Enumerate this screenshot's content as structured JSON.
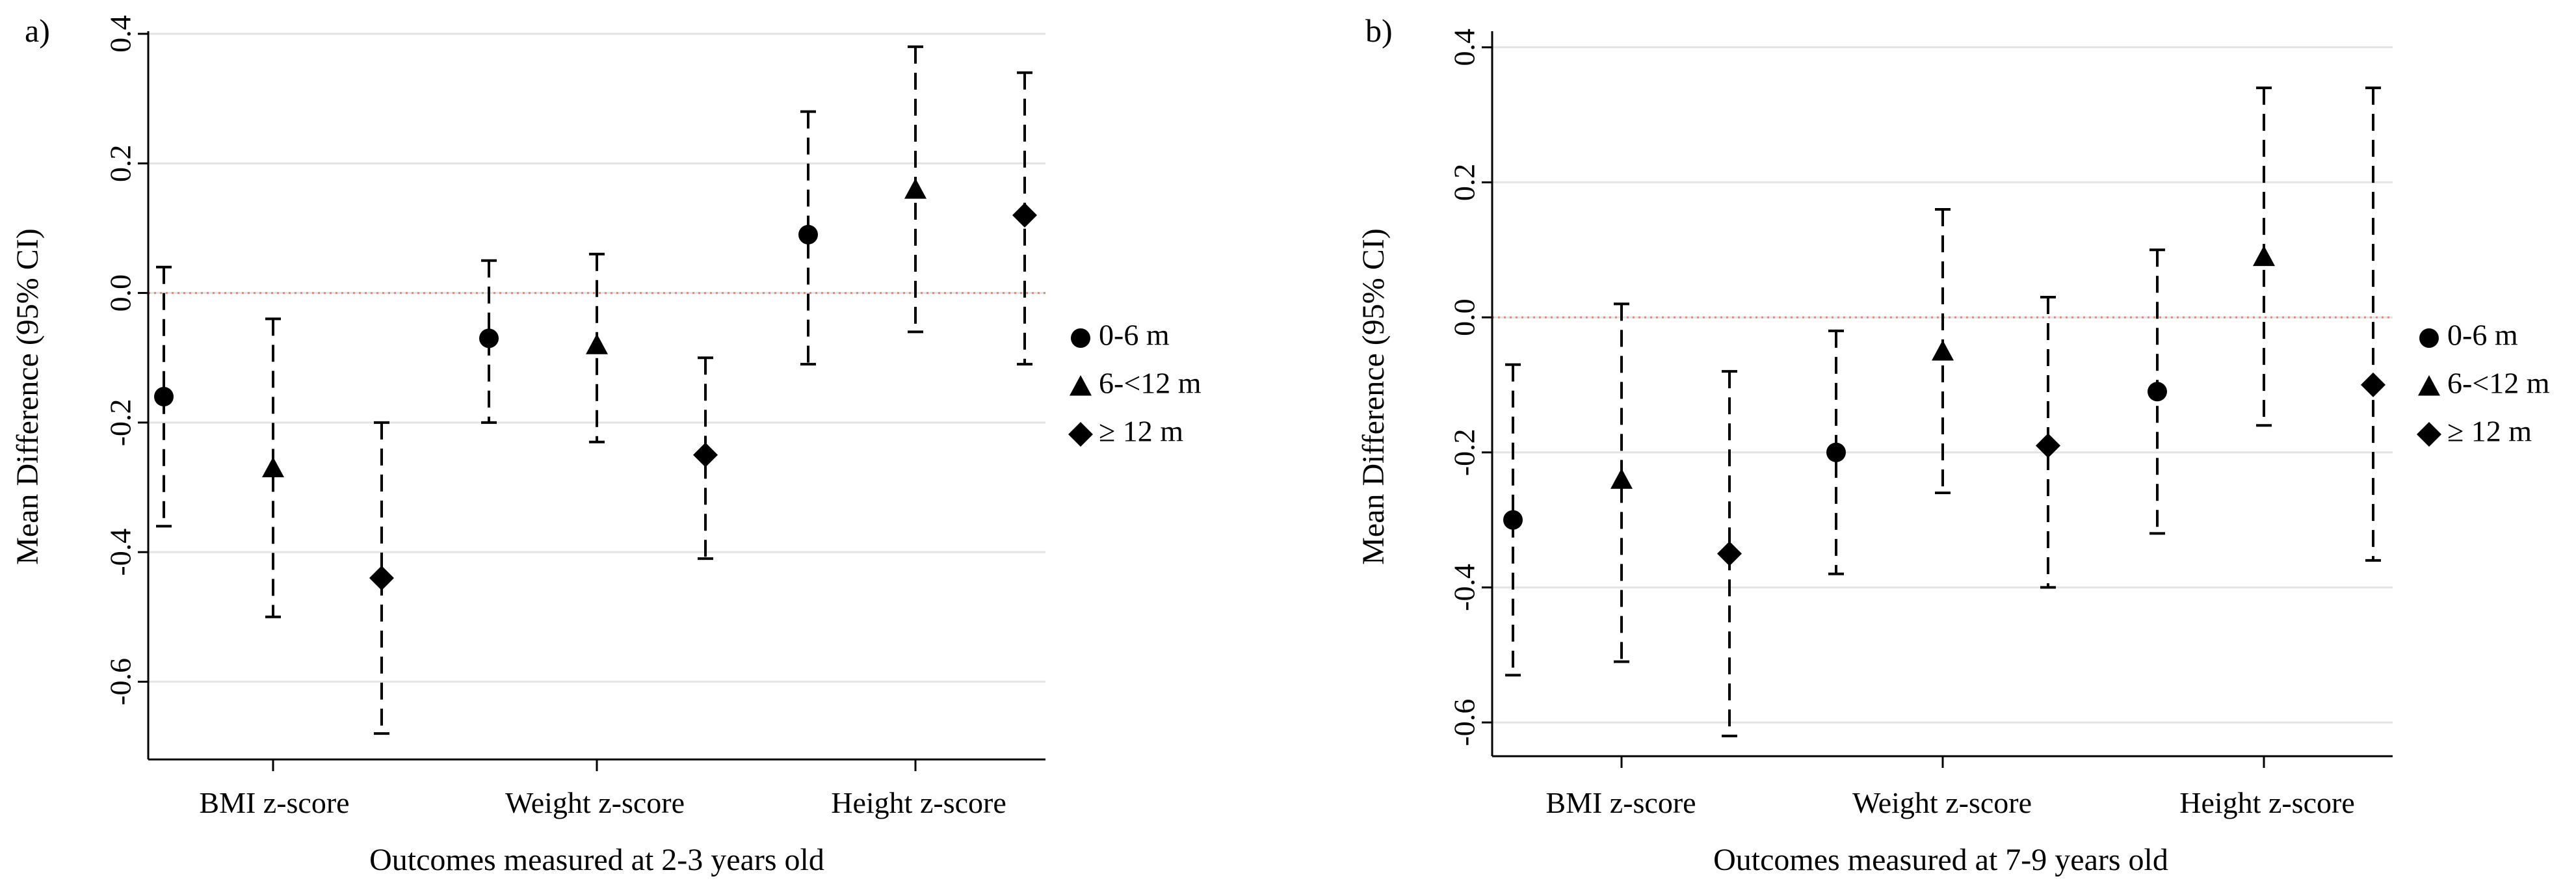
{
  "chart_data": [
    {
      "panel_label": "a)",
      "type": "errorbar",
      "ylabel": "Mean Difference (95% CI)",
      "xlabel": "Outcomes measured at 2-3 years old",
      "ylim": [
        -0.72,
        0.4
      ],
      "yticks": [
        0.4,
        0.2,
        0.0,
        -0.2,
        -0.4,
        -0.6
      ],
      "ytick_labels": [
        "0.4",
        "0.2",
        "0.0",
        "-0.2",
        "-0.4",
        "-0.6"
      ],
      "reference_line": 0,
      "categories": [
        "BMI z-score",
        "Weight z-score",
        "Height z-score"
      ],
      "series": [
        {
          "name": "0-6 m",
          "marker": "circle",
          "values": [
            -0.16,
            -0.07,
            0.09
          ],
          "lower": [
            -0.36,
            -0.2,
            -0.11
          ],
          "upper": [
            0.04,
            0.05,
            0.28
          ]
        },
        {
          "name": "6-<12 m",
          "marker": "triangle",
          "values": [
            -0.27,
            -0.08,
            0.16
          ],
          "lower": [
            -0.5,
            -0.23,
            -0.06
          ],
          "upper": [
            -0.04,
            0.06,
            0.38
          ]
        },
        {
          "name": "≥ 12 m",
          "marker": "diamond",
          "values": [
            -0.44,
            -0.25,
            0.12
          ],
          "lower": [
            -0.68,
            -0.41,
            -0.11
          ],
          "upper": [
            -0.2,
            -0.1,
            0.34
          ]
        }
      ]
    },
    {
      "panel_label": "b)",
      "type": "errorbar",
      "ylabel": "Mean Difference (95% CI)",
      "xlabel": "Outcomes measured at 7-9 years old",
      "ylim": [
        -0.65,
        0.4
      ],
      "yticks": [
        0.4,
        0.2,
        0.0,
        -0.2,
        -0.4,
        -0.6
      ],
      "ytick_labels": [
        "0.4",
        "0.2",
        "0.0",
        "-0.2",
        "-0.4",
        "-0.6"
      ],
      "reference_line": 0,
      "categories": [
        "BMI z-score",
        "Weight z-score",
        "Height z-score"
      ],
      "series": [
        {
          "name": "0-6 m",
          "marker": "circle",
          "values": [
            -0.3,
            -0.2,
            -0.11
          ],
          "lower": [
            -0.53,
            -0.38,
            -0.32
          ],
          "upper": [
            -0.07,
            -0.02,
            0.1
          ]
        },
        {
          "name": "6-<12 m",
          "marker": "triangle",
          "values": [
            -0.24,
            -0.05,
            0.09
          ],
          "lower": [
            -0.51,
            -0.26,
            -0.16
          ],
          "upper": [
            0.02,
            0.16,
            0.34
          ]
        },
        {
          "name": "≥ 12 m",
          "marker": "diamond",
          "values": [
            -0.35,
            -0.19,
            -0.1
          ],
          "lower": [
            -0.62,
            -0.4,
            -0.36
          ],
          "upper": [
            -0.08,
            0.03,
            0.34
          ]
        }
      ]
    }
  ]
}
